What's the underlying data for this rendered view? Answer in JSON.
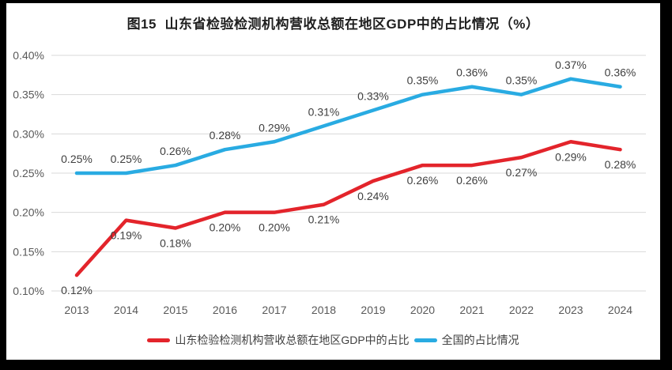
{
  "chart_data": {
    "type": "line",
    "title": "图15  山东省检验检测机构营收总额在地区GDP中的占比情况（%）",
    "categories": [
      "2013",
      "2014",
      "2015",
      "2016",
      "2017",
      "2018",
      "2019",
      "2020",
      "2021",
      "2022",
      "2023",
      "2024"
    ],
    "series": [
      {
        "name": "山东检验检测机构营收总额在地区GDP中的占比",
        "color": "#E3242B",
        "values": [
          0.12,
          0.19,
          0.18,
          0.2,
          0.2,
          0.21,
          0.24,
          0.26,
          0.26,
          0.27,
          0.29,
          0.28
        ],
        "labels": [
          "0.12%",
          "0.19%",
          "0.18%",
          "0.20%",
          "0.20%",
          "0.21%",
          "0.24%",
          "0.26%",
          "0.26%",
          "0.27%",
          "0.29%",
          "0.28%"
        ],
        "label_position": "below"
      },
      {
        "name": "全国的占比情况",
        "color": "#29ABE2",
        "values": [
          0.25,
          0.25,
          0.26,
          0.28,
          0.29,
          0.31,
          0.33,
          0.35,
          0.36,
          0.35,
          0.37,
          0.36
        ],
        "labels": [
          "0.25%",
          "0.25%",
          "0.26%",
          "0.28%",
          "0.29%",
          "0.31%",
          "0.33%",
          "0.35%",
          "0.36%",
          "0.35%",
          "0.37%",
          "0.36%"
        ],
        "label_position": "above"
      }
    ],
    "ylim": [
      0.1,
      0.4
    ],
    "ytick_step": 0.05,
    "ytick_labels": [
      "0.10%",
      "0.15%",
      "0.20%",
      "0.25%",
      "0.30%",
      "0.35%",
      "0.40%"
    ],
    "grid": "horizontal",
    "legend_position": "bottom",
    "xlabel": "",
    "ylabel": ""
  },
  "colors": {
    "frame_background": "#000000",
    "chart_background": "#FFFFFF",
    "gridline": "#D9D9D9",
    "axis_text": "#595959",
    "data_label_text": "#3F3F3F",
    "title_text": "#1F1F1F"
  }
}
